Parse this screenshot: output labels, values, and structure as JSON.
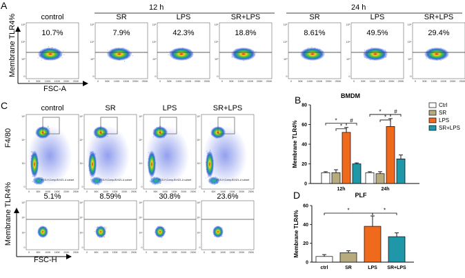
{
  "panelA": {
    "letter": "A",
    "group12": "12 h",
    "group24": "24 h",
    "ylabel": "Membrane TLR4%",
    "xlabel": "FSC-A",
    "plots": [
      {
        "label": "control",
        "percent": "10.7%"
      },
      {
        "label": "SR",
        "percent": "7.9%"
      },
      {
        "label": "LPS",
        "percent": "42.3%"
      },
      {
        "label": "SR+LPS",
        "percent": "18.8%"
      },
      {
        "label": "SR",
        "percent": "8.61%"
      },
      {
        "label": "LPS",
        "percent": "49.5%"
      },
      {
        "label": "SR+LPS",
        "percent": "29.4%"
      }
    ]
  },
  "panelC": {
    "letter": "C",
    "columns": [
      "control",
      "SR",
      "LPS",
      "SR+LPS"
    ],
    "row1_label": "F4/80",
    "row2_label": "Membrane TLR4%",
    "xlabel": "FSC-H",
    "percents": [
      "5.1%",
      "8.59%",
      "30.8%",
      "23.6%"
    ],
    "gate_note": "FCS-H,Comp-BV421-A subset"
  },
  "panelB": {
    "letter": "B"
  },
  "panelD": {
    "letter": "D"
  },
  "chart_data": [
    {
      "type": "bar",
      "title": "BMDM",
      "ylabel": "Membrane TLR4%",
      "xlabel": "",
      "ylim": [
        0,
        80
      ],
      "yticks": [
        "0",
        "20",
        "40",
        "60",
        "80"
      ],
      "categories": [
        "12h",
        "24h"
      ],
      "legend": [
        "Ctrl",
        "SR",
        "LPS",
        "SR+LPS"
      ],
      "colors": [
        "#ffffff",
        "#b5ab7e",
        "#f06a1d",
        "#1f97a8"
      ],
      "series": [
        {
          "name": "Ctrl",
          "values": [
            11,
            11
          ],
          "errors": [
            1,
            1
          ]
        },
        {
          "name": "SR",
          "values": [
            11,
            10
          ],
          "errors": [
            3,
            2
          ]
        },
        {
          "name": "LPS",
          "values": [
            52,
            58
          ],
          "errors": [
            5,
            8
          ]
        },
        {
          "name": "SR+LPS",
          "values": [
            20,
            25
          ],
          "errors": [
            1,
            4
          ]
        }
      ],
      "annotations": [
        "*",
        "*",
        "#",
        "*",
        "*",
        "#"
      ]
    },
    {
      "type": "bar",
      "title": "PLF",
      "ylabel": "Membrane TLR4%",
      "xlabel": "",
      "ylim": [
        0,
        60
      ],
      "yticks": [
        "0",
        "20",
        "40",
        "60"
      ],
      "categories": [
        "ctrl",
        "SR",
        "LPS",
        "SR+LPS"
      ],
      "colors": [
        "#ffffff",
        "#b5ab7e",
        "#f06a1d",
        "#1f97a8"
      ],
      "values": [
        6,
        10,
        38,
        27
      ],
      "errors": [
        2,
        2,
        11,
        4
      ],
      "annotations": [
        "*",
        "*"
      ]
    }
  ]
}
